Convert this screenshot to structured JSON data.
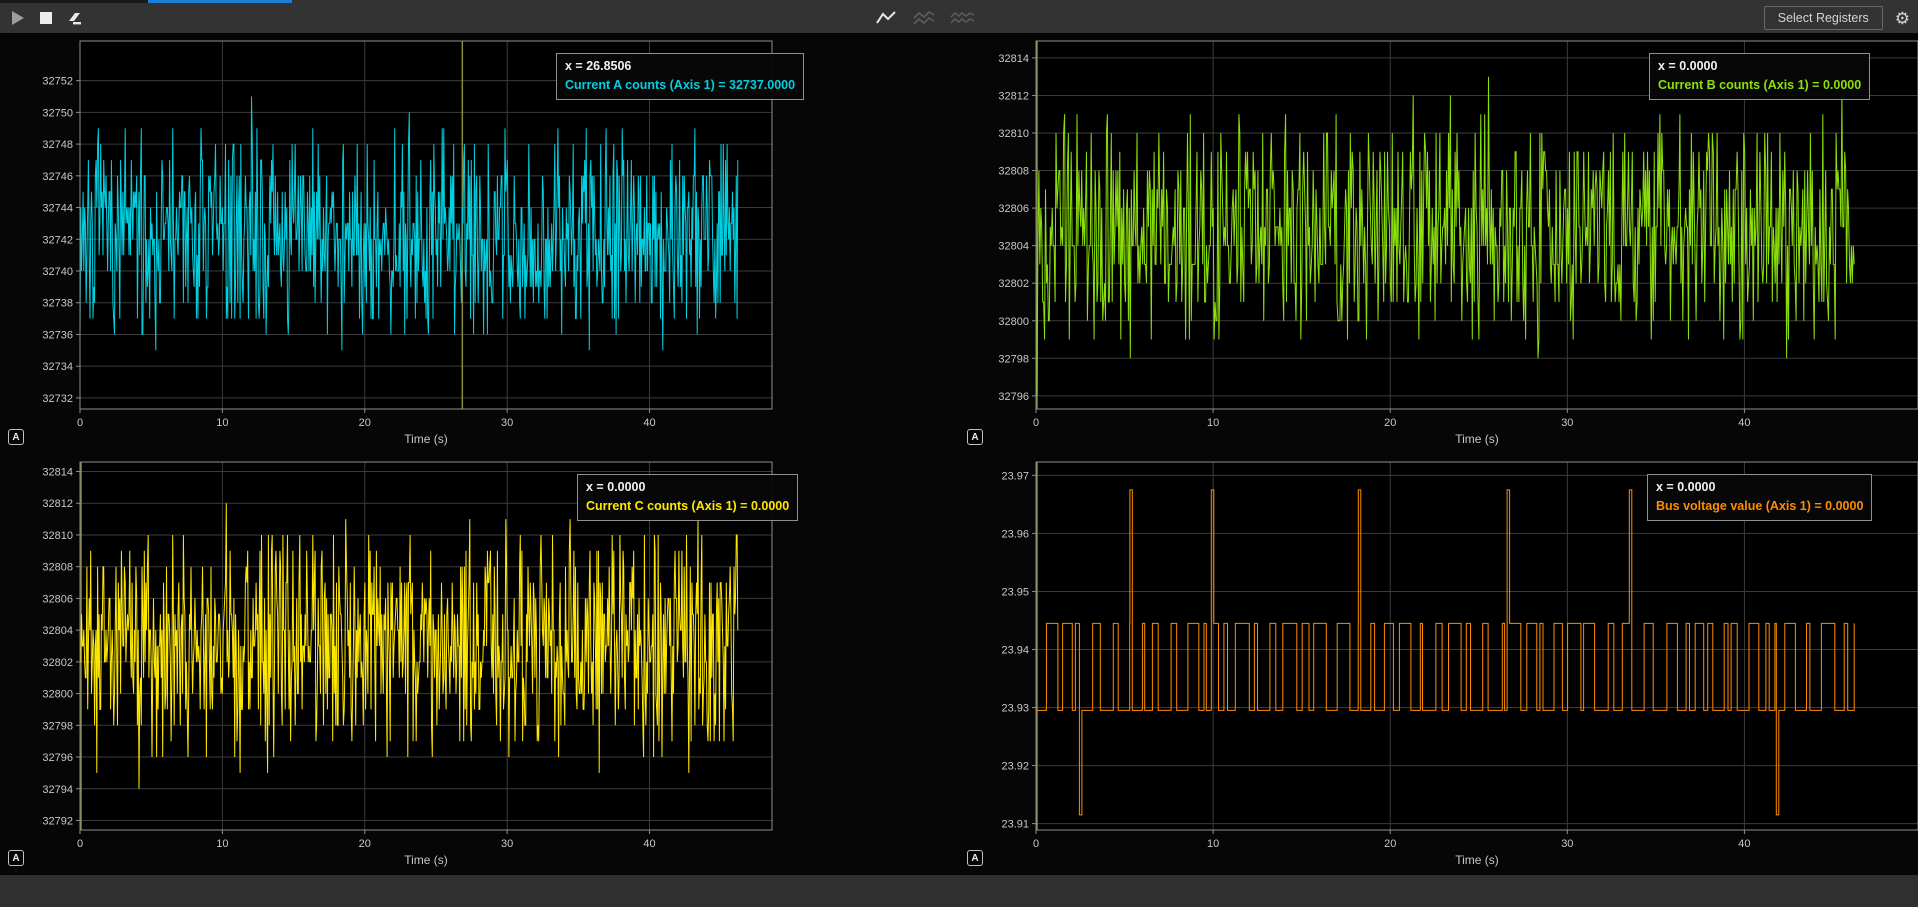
{
  "toolbar": {
    "select_registers_label": "Select Registers",
    "buttons": [
      "run",
      "stop",
      "erase",
      "single-strip-view",
      "dual-strip-view",
      "quad-strip-view"
    ]
  },
  "icons": {
    "gear": "⚙",
    "autoscale": "A"
  },
  "colors": {
    "accent_blue": "#1d7fd4",
    "cursor_olive": "#8a8a3a",
    "grid": "#3b3b3b",
    "plot_border": "#8f8f8f",
    "tick_text": "#c8c8c8"
  },
  "chart_data": [
    {
      "type": "line",
      "title": "Current A counts",
      "series_color": "#00d0e0",
      "tooltip": {
        "x_label": "x = 26.8506",
        "value_label": "Current A counts (Axis 1) = 32737.0000"
      },
      "xlabel": "Time (s)",
      "x_ticks": [
        0,
        10,
        20,
        30,
        40
      ],
      "x_view_max": 48.6,
      "x_data_max": 46.2,
      "y_ticks": [
        32752,
        32750,
        32748,
        32746,
        32744,
        32742,
        32740,
        32738,
        32736,
        32734,
        32732
      ],
      "y_view": [
        32731.3,
        32754.5
      ],
      "cursor_x": 26.8506,
      "signal": {
        "kind": "noise",
        "mean": 32742.4,
        "sigma": 3.1,
        "min": 32733,
        "max": 32752,
        "points": 860,
        "seed": 7
      }
    },
    {
      "type": "line",
      "title": "Current B counts",
      "series_color": "#8ce00a",
      "tooltip": {
        "x_label": "x = 0.0000",
        "value_label": "Current B counts (Axis 1) = 0.0000"
      },
      "xlabel": "Time (s)",
      "x_ticks": [
        0,
        10,
        20,
        30,
        40
      ],
      "x_view_max": 49.8,
      "x_data_max": 46.2,
      "y_ticks": [
        32814,
        32812,
        32810,
        32808,
        32806,
        32804,
        32802,
        32800,
        32798,
        32796
      ],
      "y_view": [
        32795.3,
        32814.9
      ],
      "cursor_x": 0,
      "signal": {
        "kind": "noise",
        "mean": 32804.9,
        "sigma": 2.9,
        "min": 32796,
        "max": 32813,
        "points": 860,
        "seed": 13
      }
    },
    {
      "type": "line",
      "title": "Current C counts",
      "series_color": "#ffe800",
      "tooltip": {
        "x_label": "x = 0.0000",
        "value_label": "Current C counts (Axis 1) = 0.0000"
      },
      "xlabel": "Time (s)",
      "x_ticks": [
        0,
        10,
        20,
        30,
        40
      ],
      "x_view_max": 48.6,
      "x_data_max": 46.2,
      "y_ticks": [
        32814,
        32812,
        32810,
        32808,
        32806,
        32804,
        32802,
        32800,
        32798,
        32796,
        32794,
        32792
      ],
      "y_view": [
        32791.4,
        32814.6
      ],
      "cursor_x": 0,
      "signal": {
        "kind": "noise",
        "mean": 32803.2,
        "sigma": 3.5,
        "min": 32792,
        "max": 32814,
        "points": 860,
        "seed": 21
      }
    },
    {
      "type": "line",
      "title": "Bus voltage value",
      "series_color": "#ff8c00",
      "tooltip": {
        "x_label": "x = 0.0000",
        "value_label": "Bus voltage value (Axis 1) = 0.0000"
      },
      "xlabel": "Time (s)",
      "x_ticks": [
        0,
        10,
        20,
        30,
        40
      ],
      "x_view_max": 49.8,
      "x_data_max": 46.2,
      "y_ticks": [
        23.97,
        23.96,
        23.95,
        23.94,
        23.93,
        23.92,
        23.91
      ],
      "y_view": [
        23.9089,
        23.9723
      ],
      "cursor_x": 0,
      "signal": {
        "kind": "square",
        "low": 23.9295,
        "high": 23.9445,
        "spike_high": 23.9675,
        "spike_low": 23.9115,
        "up_spikes": [
          5.3,
          9.9,
          18.2,
          26.6,
          33.5
        ],
        "down_spikes": [
          2.45,
          41.8
        ],
        "min_seg": 0.12,
        "max_seg": 0.8,
        "seed": 5
      }
    }
  ]
}
